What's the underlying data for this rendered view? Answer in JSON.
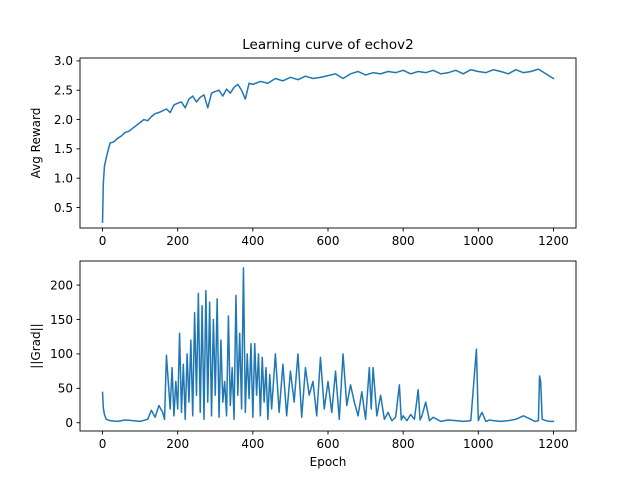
{
  "chart_data": [
    {
      "type": "line",
      "title": "Learning curve of echov2",
      "xlabel": "",
      "ylabel": "Avg Reward",
      "xlim": [
        -60,
        1260
      ],
      "ylim": [
        0.15,
        3.05
      ],
      "xticks": [
        0,
        200,
        400,
        600,
        800,
        1000,
        1200
      ],
      "yticks": [
        0.5,
        1.0,
        1.5,
        2.0,
        2.5,
        3.0
      ],
      "ytick_labels": [
        "0.5",
        "1.0",
        "1.5",
        "2.0",
        "2.5",
        "3.0"
      ],
      "grid": false,
      "series": [
        {
          "color": "#1f77b4",
          "x": [
            0,
            2,
            5,
            10,
            15,
            20,
            30,
            40,
            50,
            60,
            70,
            80,
            90,
            100,
            110,
            120,
            130,
            140,
            150,
            160,
            170,
            180,
            190,
            200,
            210,
            220,
            230,
            240,
            250,
            260,
            270,
            280,
            290,
            300,
            310,
            320,
            330,
            340,
            350,
            360,
            370,
            380,
            390,
            400,
            420,
            440,
            460,
            480,
            500,
            520,
            540,
            560,
            580,
            600,
            620,
            640,
            660,
            680,
            700,
            720,
            740,
            760,
            780,
            800,
            820,
            840,
            860,
            880,
            900,
            920,
            940,
            960,
            980,
            1000,
            1020,
            1040,
            1060,
            1080,
            1100,
            1120,
            1140,
            1160,
            1180,
            1195,
            1200
          ],
          "values": [
            0.25,
            0.9,
            1.2,
            1.35,
            1.48,
            1.6,
            1.62,
            1.68,
            1.72,
            1.78,
            1.8,
            1.85,
            1.9,
            1.95,
            2.0,
            1.98,
            2.05,
            2.1,
            2.12,
            2.15,
            2.18,
            2.12,
            2.25,
            2.28,
            2.3,
            2.2,
            2.35,
            2.4,
            2.3,
            2.38,
            2.42,
            2.2,
            2.45,
            2.48,
            2.5,
            2.4,
            2.52,
            2.45,
            2.55,
            2.6,
            2.5,
            2.35,
            2.62,
            2.6,
            2.65,
            2.62,
            2.7,
            2.66,
            2.72,
            2.68,
            2.74,
            2.7,
            2.72,
            2.75,
            2.78,
            2.7,
            2.78,
            2.82,
            2.76,
            2.8,
            2.78,
            2.82,
            2.8,
            2.84,
            2.78,
            2.82,
            2.8,
            2.84,
            2.78,
            2.8,
            2.84,
            2.78,
            2.85,
            2.82,
            2.8,
            2.85,
            2.82,
            2.78,
            2.85,
            2.8,
            2.82,
            2.86,
            2.78,
            2.72,
            2.7
          ]
        }
      ]
    },
    {
      "type": "line",
      "title": "",
      "xlabel": "Epoch",
      "ylabel": "||Grad||",
      "xlim": [
        -60,
        1260
      ],
      "ylim": [
        -12,
        235
      ],
      "xticks": [
        0,
        200,
        400,
        600,
        800,
        1000,
        1200
      ],
      "yticks": [
        0,
        50,
        100,
        150,
        200
      ],
      "ytick_labels": [
        "0",
        "50",
        "100",
        "150",
        "200"
      ],
      "grid": false,
      "series": [
        {
          "color": "#1f77b4",
          "x": [
            0,
            2,
            5,
            10,
            20,
            40,
            60,
            80,
            100,
            120,
            130,
            140,
            150,
            160,
            165,
            170,
            180,
            185,
            190,
            195,
            200,
            205,
            210,
            215,
            220,
            225,
            230,
            235,
            240,
            245,
            250,
            255,
            260,
            265,
            270,
            275,
            280,
            285,
            290,
            295,
            300,
            305,
            310,
            315,
            320,
            325,
            330,
            335,
            340,
            345,
            350,
            355,
            360,
            365,
            370,
            375,
            380,
            385,
            390,
            395,
            400,
            405,
            410,
            415,
            420,
            425,
            430,
            435,
            440,
            445,
            450,
            460,
            470,
            480,
            490,
            500,
            510,
            520,
            530,
            540,
            550,
            560,
            570,
            580,
            590,
            600,
            610,
            620,
            630,
            640,
            650,
            660,
            670,
            680,
            690,
            700,
            710,
            715,
            720,
            730,
            740,
            750,
            760,
            770,
            780,
            790,
            795,
            800,
            810,
            820,
            830,
            840,
            845,
            850,
            860,
            870,
            880,
            890,
            900,
            920,
            940,
            960,
            980,
            995,
            1000,
            1005,
            1010,
            1020,
            1030,
            1040,
            1060,
            1080,
            1100,
            1120,
            1140,
            1150,
            1160,
            1163,
            1166,
            1170,
            1180,
            1190,
            1200
          ],
          "values": [
            44,
            22,
            12,
            5,
            3,
            2,
            4,
            3,
            2,
            5,
            18,
            8,
            25,
            15,
            5,
            98,
            20,
            80,
            10,
            60,
            20,
            130,
            15,
            85,
            5,
            100,
            30,
            120,
            10,
            160,
            40,
            188,
            15,
            170,
            5,
            192,
            30,
            175,
            10,
            150,
            40,
            180,
            8,
            120,
            30,
            60,
            10,
            155,
            25,
            80,
            5,
            185,
            40,
            130,
            20,
            225,
            15,
            100,
            35,
            115,
            8,
            115,
            40,
            100,
            10,
            95,
            30,
            80,
            5,
            70,
            20,
            100,
            15,
            85,
            10,
            75,
            30,
            100,
            8,
            80,
            40,
            60,
            10,
            95,
            20,
            60,
            15,
            75,
            5,
            100,
            25,
            55,
            30,
            10,
            45,
            5,
            80,
            20,
            80,
            10,
            40,
            5,
            15,
            3,
            8,
            55,
            4,
            10,
            3,
            12,
            5,
            48,
            4,
            10,
            30,
            3,
            8,
            5,
            2,
            4,
            3,
            2,
            3,
            107,
            3,
            10,
            15,
            2,
            4,
            3,
            2,
            3,
            5,
            10,
            5,
            2,
            3,
            68,
            60,
            5,
            3,
            2,
            2
          ]
        }
      ]
    }
  ]
}
